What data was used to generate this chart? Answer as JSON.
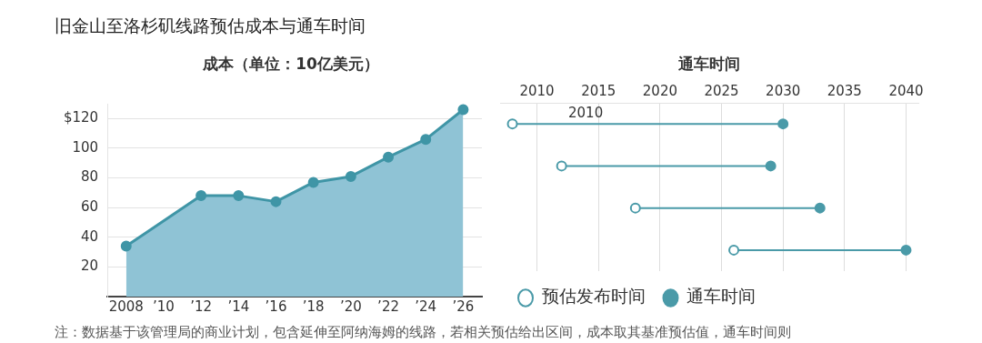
{
  "chart_data": [
    {
      "type": "area",
      "title": "旧金山至洛杉矶线路预估成本与通车时间",
      "subtitle": "成本（单位：10亿美元）",
      "x": [
        2008,
        2012,
        2014,
        2016,
        2018,
        2020,
        2022,
        2024,
        2026
      ],
      "series": [
        {
          "color": "#8fc3d5",
          "values": [
            34,
            68,
            68,
            64,
            77,
            81,
            94,
            106,
            126
          ]
        }
      ],
      "marker": "circle",
      "grid": "y",
      "xlim": [
        2007,
        2027
      ],
      "xticks": [
        2008,
        {
          "value": 2010,
          "label": "’10"
        },
        {
          "value": 2012,
          "label": "’12"
        },
        {
          "value": 2014,
          "label": "’14"
        },
        {
          "value": 2016,
          "label": "’16"
        },
        {
          "value": 2018,
          "label": "’18"
        },
        {
          "value": 2020,
          "label": "’20"
        },
        {
          "value": 2022,
          "label": "’22"
        },
        {
          "value": 2024,
          "label": "’24"
        },
        {
          "value": 2026,
          "label": "’26"
        }
      ],
      "ylim": [
        0,
        130
      ],
      "yticks": [
        {
          "value": 0,
          "label": null
        },
        20,
        40,
        60,
        80,
        100,
        {
          "value": 120,
          "label": "$120"
        }
      ],
      "annotations": [
        "注：数据基于该管理局的商业计划，包含延伸至阿纳海姆的线路，若相关预估给出区间，成本取其基准预估值，通车时间则"
      ]
    },
    {
      "type": "scatter",
      "title": "通车时间",
      "orientation": "horizontal",
      "categories": [
        null,
        null,
        null,
        null
      ],
      "series": [
        {
          "name": "预估发布时间",
          "color": "#4a9aa8",
          "marker": "open circle",
          "values": [
            2008,
            2012,
            2018,
            2026
          ]
        },
        {
          "name": "通车时间",
          "color": "#4a9aa8",
          "marker": "circle",
          "values": [
            2030,
            2029,
            2033,
            2040
          ]
        }
      ],
      "xlim": [
        2007,
        2041
      ],
      "xticks": [
        2010,
        2015,
        2020,
        2025,
        2030,
        2035,
        2040
      ],
      "grid": "x",
      "legend": "bottom",
      "tick_labels": "x",
      "annotations": [
        "2010"
      ]
    }
  ]
}
